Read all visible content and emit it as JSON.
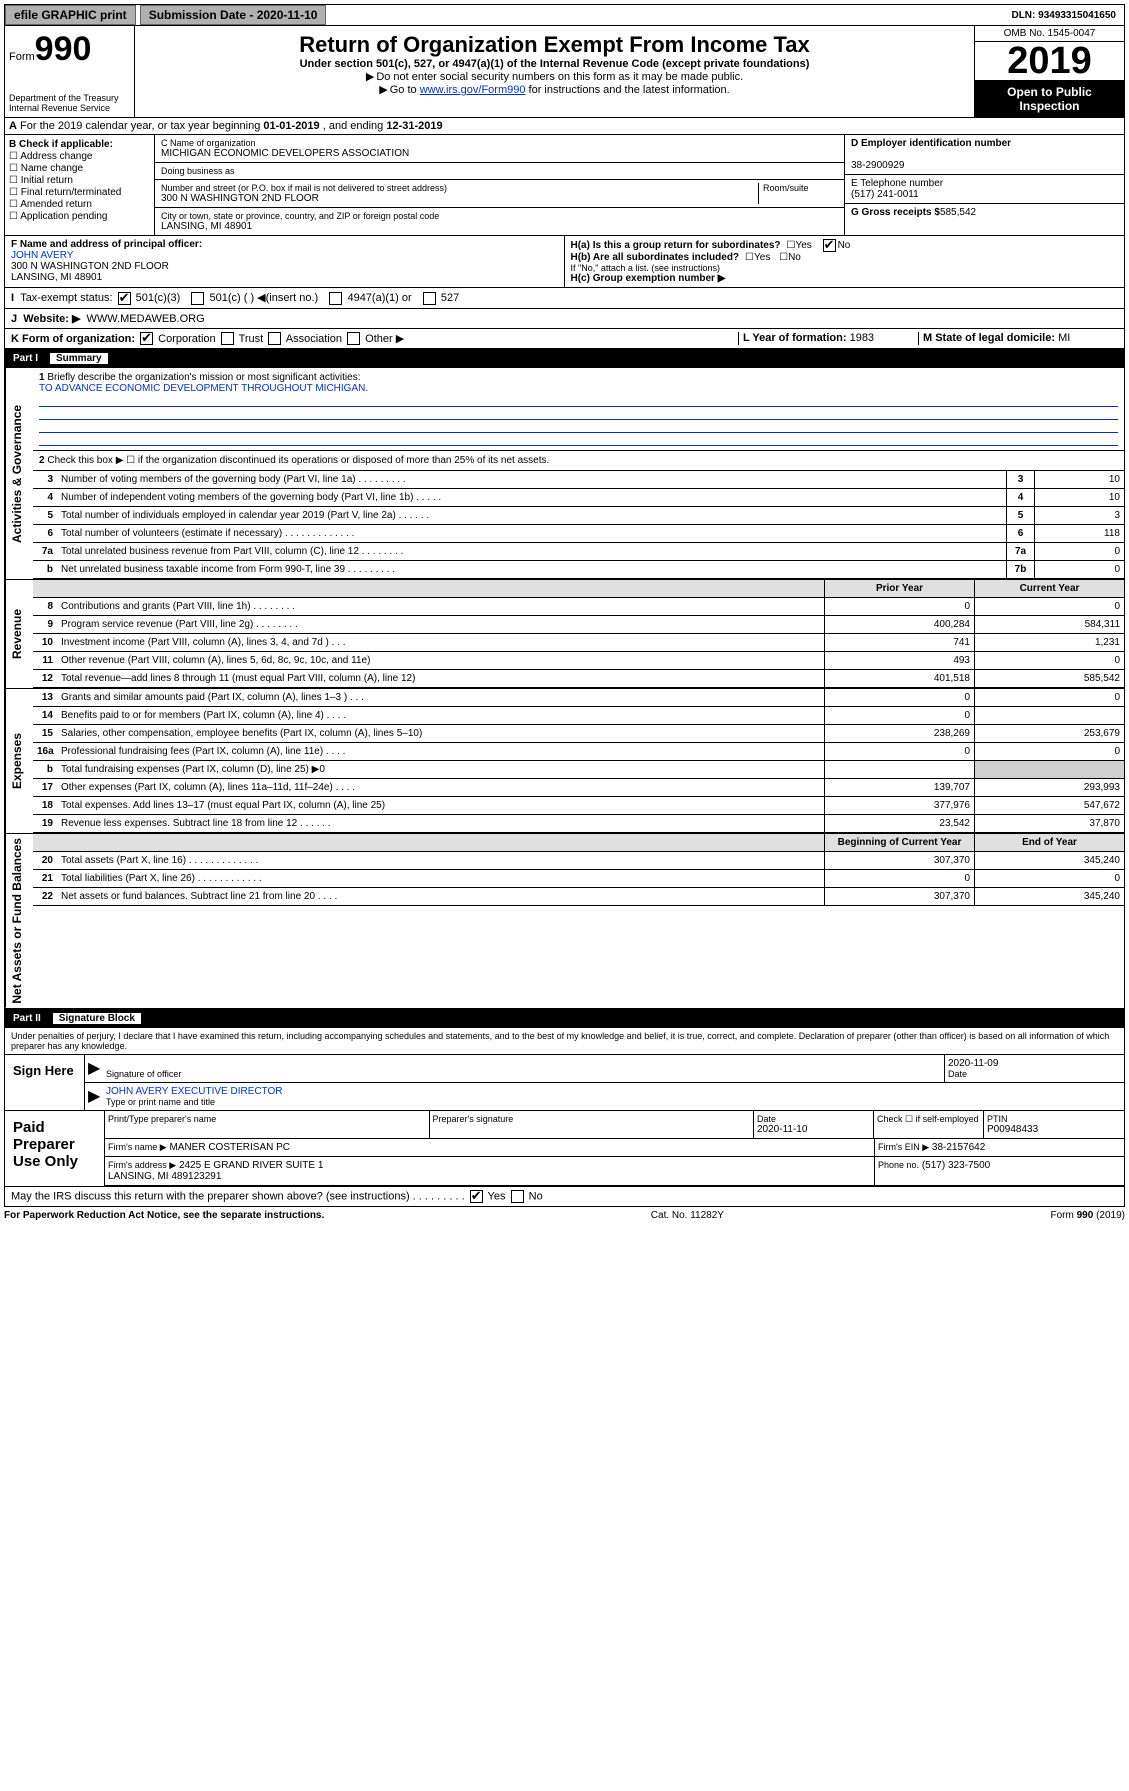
{
  "top": {
    "efile": "efile GRAPHIC print",
    "submission": "Submission Date - 2020-11-10",
    "dln": "DLN: 93493315041650"
  },
  "header": {
    "form_word": "Form",
    "form_no": "990",
    "title": "Return of Organization Exempt From Income Tax",
    "subtitle": "Under section 501(c), 527, or 4947(a)(1) of the Internal Revenue Code (except private foundations)",
    "note1": "Do not enter social security numbers on this form as it may be made public.",
    "note2_pre": "Go to ",
    "note2_link": "www.irs.gov/Form990",
    "note2_post": " for instructions and the latest information.",
    "dept": "Department of the Treasury\nInternal Revenue Service",
    "omb": "OMB No. 1545-0047",
    "year": "2019",
    "inspect": "Open to Public Inspection"
  },
  "rowA": {
    "text_pre": "For the 2019 calendar year, or tax year beginning ",
    "begin": "01-01-2019",
    "mid": " , and ending ",
    "end": "12-31-2019"
  },
  "sectionB": {
    "label": "B Check if applicable:",
    "checks": [
      "Address change",
      "Name change",
      "Initial return",
      "Final return/terminated",
      "Amended return",
      "Application pending"
    ]
  },
  "sectionC": {
    "name_label": "C Name of organization",
    "name": "MICHIGAN ECONOMIC DEVELOPERS ASSOCIATION",
    "dba_label": "Doing business as",
    "dba": "",
    "addr_label": "Number and street (or P.O. box if mail is not delivered to street address)",
    "room_label": "Room/suite",
    "addr": "300 N WASHINGTON 2ND FLOOR",
    "city_label": "City or town, state or province, country, and ZIP or foreign postal code",
    "city": "LANSING, MI  48901"
  },
  "sectionD": {
    "label": "D Employer identification number",
    "ein": "38-2900929"
  },
  "sectionE": {
    "label": "E Telephone number",
    "phone": "(517) 241-0011"
  },
  "sectionG": {
    "label": "G Gross receipts $",
    "value": "585,542"
  },
  "sectionF": {
    "label": "F Name and address of principal officer:",
    "name": "JOHN AVERY",
    "addr": "300 N WASHINGTON 2ND FLOOR\nLANSING, MI  48901"
  },
  "sectionH": {
    "a": "H(a)  Is this a group return for subordinates?",
    "b": "H(b)  Are all subordinates included?",
    "b_note": "If \"No,\" attach a list. (see instructions)",
    "c": "H(c)  Group exemption number ▶"
  },
  "sectionI": {
    "label": "Tax-exempt status:",
    "opts": [
      "501(c)(3)",
      "501(c) (  ) ◀(insert no.)",
      "4947(a)(1) or",
      "527"
    ]
  },
  "sectionJ": {
    "label": "Website: ▶",
    "value": "WWW.MEDAWEB.ORG"
  },
  "sectionK": {
    "label": "K Form of organization:",
    "opts": [
      "Corporation",
      "Trust",
      "Association",
      "Other ▶"
    ]
  },
  "sectionL": {
    "label": "L Year of formation:",
    "value": "1983"
  },
  "sectionM": {
    "label": "M State of legal domicile:",
    "value": "MI"
  },
  "part1": {
    "label": "Part I",
    "title": "Summary"
  },
  "governance": {
    "label": "Activities & Governance",
    "q1": {
      "n": "1",
      "t": "Briefly describe the organization's mission or most significant activities:",
      "v": "TO ADVANCE ECONOMIC DEVELOPMENT THROUGHOUT MICHIGAN."
    },
    "q2": {
      "n": "2",
      "t": "Check this box ▶ ☐ if the organization discontinued its operations or disposed of more than 25% of its net assets."
    },
    "lines": [
      {
        "n": "3",
        "t": "Number of voting members of the governing body (Part VI, line 1a)  .    .    .    .    .    .    .    .    .",
        "rn": "3",
        "rv": "10"
      },
      {
        "n": "4",
        "t": "Number of independent voting members of the governing body (Part VI, line 1b)  .    .    .    .    .",
        "rn": "4",
        "rv": "10"
      },
      {
        "n": "5",
        "t": "Total number of individuals employed in calendar year 2019 (Part V, line 2a)  .    .    .    .    .    .",
        "rn": "5",
        "rv": "3"
      },
      {
        "n": "6",
        "t": "Total number of volunteers (estimate if necessary)  .    .    .    .    .    .    .    .    .    .    .    .    .",
        "rn": "6",
        "rv": "118"
      },
      {
        "n": "7a",
        "t": "Total unrelated business revenue from Part VIII, column (C), line 12  .    .    .    .    .    .    .    .",
        "rn": "7a",
        "rv": "0"
      },
      {
        "n": "b",
        "t": "Net unrelated business taxable income from Form 990-T, line 39  .    .    .    .    .    .    .    .    .",
        "rn": "7b",
        "rv": "0"
      }
    ]
  },
  "revenue": {
    "label": "Revenue",
    "head_py": "Prior Year",
    "head_cy": "Current Year",
    "lines": [
      {
        "n": "8",
        "t": "Contributions and grants (Part VIII, line 1h)  .    .    .    .    .    .    .    .",
        "py": "0",
        "cy": "0"
      },
      {
        "n": "9",
        "t": "Program service revenue (Part VIII, line 2g)  .    .    .    .    .    .    .    .",
        "py": "400,284",
        "cy": "584,311"
      },
      {
        "n": "10",
        "t": "Investment income (Part VIII, column (A), lines 3, 4, and 7d )  .    .    .",
        "py": "741",
        "cy": "1,231"
      },
      {
        "n": "11",
        "t": "Other revenue (Part VIII, column (A), lines 5, 6d, 8c, 9c, 10c, and 11e)",
        "py": "493",
        "cy": "0"
      },
      {
        "n": "12",
        "t": "Total revenue—add lines 8 through 11 (must equal Part VIII, column (A), line 12)",
        "py": "401,518",
        "cy": "585,542"
      }
    ]
  },
  "expenses": {
    "label": "Expenses",
    "lines": [
      {
        "n": "13",
        "t": "Grants and similar amounts paid (Part IX, column (A), lines 1–3 )  .    .    .",
        "py": "0",
        "cy": "0"
      },
      {
        "n": "14",
        "t": "Benefits paid to or for members (Part IX, column (A), line 4)  .    .    .    .",
        "py": "0",
        "cy": ""
      },
      {
        "n": "15",
        "t": "Salaries, other compensation, employee benefits (Part IX, column (A), lines 5–10)",
        "py": "238,269",
        "cy": "253,679"
      },
      {
        "n": "16a",
        "t": "Professional fundraising fees (Part IX, column (A), line 11e)  .    .    .    .",
        "py": "0",
        "cy": "0"
      },
      {
        "n": "b",
        "t": "Total fundraising expenses (Part IX, column (D), line 25) ▶0",
        "py": "",
        "cy": "",
        "shaded": true
      },
      {
        "n": "17",
        "t": "Other expenses (Part IX, column (A), lines 11a–11d, 11f–24e)  .    .    .    .",
        "py": "139,707",
        "cy": "293,993"
      },
      {
        "n": "18",
        "t": "Total expenses. Add lines 13–17 (must equal Part IX, column (A), line 25)",
        "py": "377,976",
        "cy": "547,672"
      },
      {
        "n": "19",
        "t": "Revenue less expenses. Subtract line 18 from line 12  .    .    .    .    .    .",
        "py": "23,542",
        "cy": "37,870"
      }
    ]
  },
  "netassets": {
    "label": "Net Assets or Fund Balances",
    "head_py": "Beginning of Current Year",
    "head_cy": "End of Year",
    "lines": [
      {
        "n": "20",
        "t": "Total assets (Part X, line 16)  .    .    .    .    .    .    .    .    .    .    .    .    .",
        "py": "307,370",
        "cy": "345,240"
      },
      {
        "n": "21",
        "t": "Total liabilities (Part X, line 26)  .    .    .    .    .    .    .    .    .    .    .    .",
        "py": "0",
        "cy": "0"
      },
      {
        "n": "22",
        "t": "Net assets or fund balances. Subtract line 21 from line 20  .    .    .    .",
        "py": "307,370",
        "cy": "345,240"
      }
    ]
  },
  "part2": {
    "label": "Part II",
    "title": "Signature Block",
    "declaration": "Under penalties of perjury, I declare that I have examined this return, including accompanying schedules and statements, and to the best of my knowledge and belief, it is true, correct, and complete. Declaration of preparer (other than officer) is based on all information of which preparer has any knowledge."
  },
  "sign": {
    "label": "Sign Here",
    "sig_label": "Signature of officer",
    "date": "2020-11-09",
    "date_label": "Date",
    "name": "JOHN AVERY EXECUTIVE DIRECTOR",
    "name_label": "Type or print name and title"
  },
  "preparer": {
    "label": "Paid Preparer Use Only",
    "h1": "Print/Type preparer's name",
    "h2": "Preparer's signature",
    "h3": "Date",
    "h4": "Check ☐ if self-employed",
    "h5": "PTIN",
    "name": "",
    "sig": "",
    "date": "2020-11-10",
    "ptin": "P00948433",
    "firm_label": "Firm's name    ▶",
    "firm": "MANER COSTERISAN PC",
    "ein_label": "Firm's EIN ▶",
    "ein": "38-2157642",
    "addr_label": "Firm's address ▶",
    "addr": "2425 E GRAND RIVER SUITE 1\nLANSING, MI  489123291",
    "phone_label": "Phone no.",
    "phone": "(517) 323-7500"
  },
  "discuss": "May the IRS discuss this return with the preparer shown above? (see instructions)   .    .    .    .    .    .    .    .    .",
  "footer": {
    "left": "For Paperwork Reduction Act Notice, see the separate instructions.",
    "mid": "Cat. No. 11282Y",
    "right": "Form 990 (2019)"
  }
}
